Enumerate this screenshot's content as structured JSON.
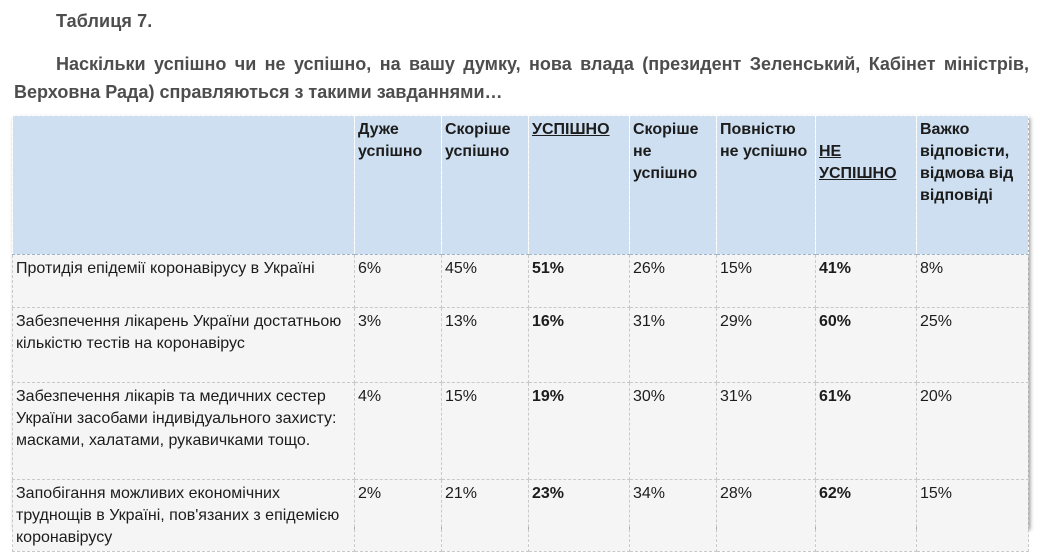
{
  "table_label": "Таблиця 7.",
  "caption": "Наскільки успішно чи не успішно, на вашу думку, нова влада (президент Зеленський, Кабінет міністрів, Верховна Рада) справляються з такими завданнями…",
  "header": {
    "col_task": "",
    "very_successful": "Дуже успішно",
    "rather_successful": "Скоріше успішно",
    "successful_total": "УСПІШНО",
    "rather_unsuccessful": "Скоріше не успішно",
    "completely_unsuccessful": "Повністю не успішно",
    "unsuccessful_total": "НЕ УСПІШНО",
    "hard_to_say": "Важко відповісти, відмова від відповіді"
  },
  "rows": [
    {
      "task": "Протидія епідемії коронавірусу в Україні",
      "very": "6%",
      "rather": "45%",
      "succ": "51%",
      "rather_not": "26%",
      "completely_not": "15%",
      "not_succ": "41%",
      "hard": "8%"
    },
    {
      "task": "Забезпечення лікарень України достатньою кількістю тестів на коронавірус",
      "very": "3%",
      "rather": "13%",
      "succ": "16%",
      "rather_not": "31%",
      "completely_not": "29%",
      "not_succ": "60%",
      "hard": "25%"
    },
    {
      "task": "Забезпечення лікарів та медичних сестер України засобами індивідуального захисту: масками, халатами, рукавичками тощо.",
      "very": "4%",
      "rather": "15%",
      "succ": "19%",
      "rather_not": "30%",
      "completely_not": "31%",
      "not_succ": "61%",
      "hard": "20%"
    },
    {
      "task": "Запобігання можливих економічних труднощів в Україні, пов'язаних з епідемією коронавірусу",
      "very": "2%",
      "rather": "21%",
      "succ": "23%",
      "rather_not": "34%",
      "completely_not": "28%",
      "not_succ": "62%",
      "hard": "15%"
    }
  ],
  "colors": {
    "header_bg": "#cddff0",
    "body_bg": "#f5f5f5",
    "title_text": "#4d4d4d"
  }
}
